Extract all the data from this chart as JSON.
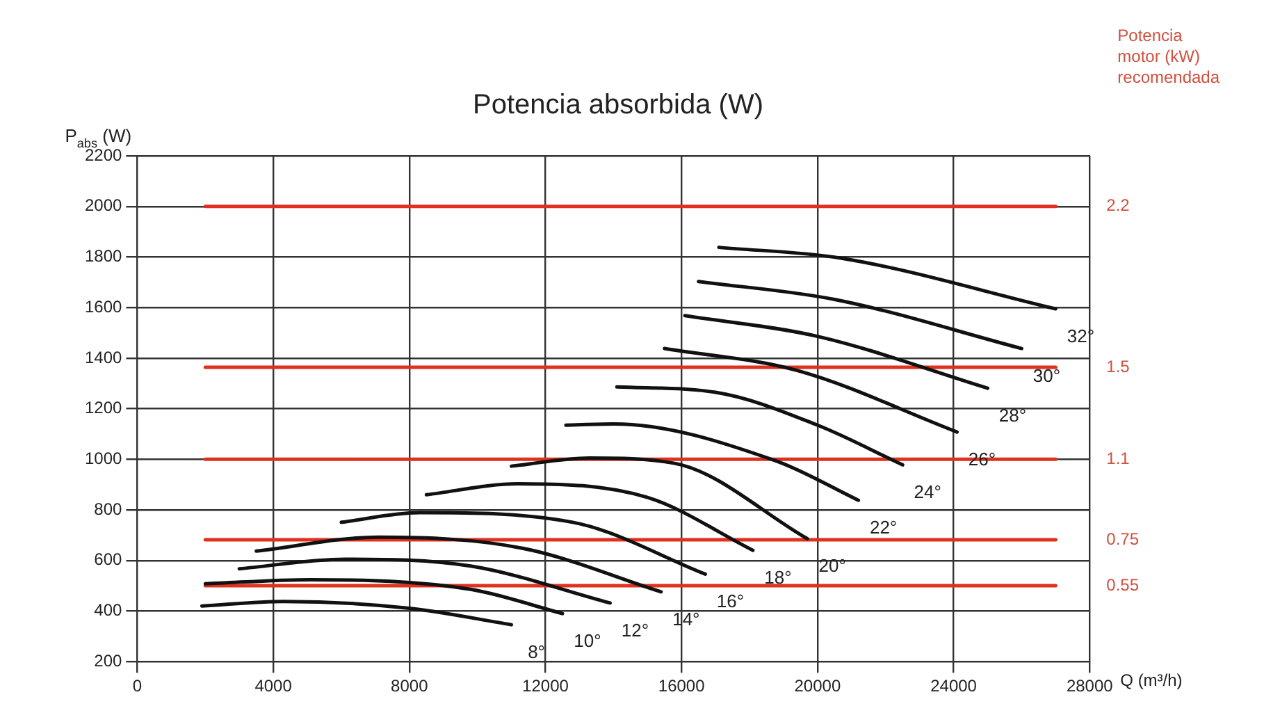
{
  "chart_data": {
    "type": "line",
    "title": "Potencia absorbida (W)",
    "xlabel": "Q (m³/h)",
    "ylabel": "P$_{abs}$ (W)",
    "y2label": "Potencia motor (kW) recomendada",
    "xlim": [
      0,
      28000
    ],
    "xticks": [
      0,
      4000,
      8000,
      12000,
      16000,
      20000,
      24000,
      28000
    ],
    "ylim": [
      200,
      2200
    ],
    "yticks": [
      200,
      400,
      600,
      800,
      1000,
      1200,
      1400,
      1600,
      1800,
      2000,
      2200
    ],
    "y2lim": [
      0.22,
      2.42
    ],
    "y2ticks": [
      0.55,
      0.75,
      1.1,
      1.5,
      2.2
    ],
    "grid": true,
    "legend": false,
    "marker": "none",
    "line_style": "solid",
    "series": [
      {
        "name": "8°",
        "color": "#111111",
        "x": [
          1900,
          4300,
          8000,
          11000
        ],
        "values": [
          420,
          438,
          411,
          346
        ]
      },
      {
        "name": "10°",
        "color": "#111111",
        "x": [
          2000,
          5100,
          9800,
          12500
        ],
        "values": [
          508,
          524,
          486,
          390
        ]
      },
      {
        "name": "12°",
        "color": "#111111",
        "x": [
          3000,
          6100,
          9800,
          13900
        ],
        "values": [
          567,
          605,
          578,
          432
        ]
      },
      {
        "name": "14°",
        "color": "#111111",
        "x": [
          3500,
          7100,
          11300,
          15400
        ],
        "values": [
          637,
          692,
          649,
          476
        ]
      },
      {
        "name": "16°",
        "color": "#111111",
        "x": [
          6000,
          8300,
          12800,
          16700
        ],
        "values": [
          751,
          789,
          751,
          546
        ]
      },
      {
        "name": "18°",
        "color": "#111111",
        "x": [
          8500,
          11200,
          15000,
          18100
        ],
        "values": [
          860,
          903,
          849,
          640
        ]
      },
      {
        "name": "20°",
        "color": "#111111",
        "x": [
          11000,
          13300,
          15800,
          19700
        ],
        "values": [
          973,
          1005,
          984,
          686
        ]
      },
      {
        "name": "22°",
        "color": "#111111",
        "x": [
          12600,
          14000,
          18750,
          21200
        ],
        "values": [
          1135,
          1140,
          995,
          838
        ]
      },
      {
        "name": "24°",
        "color": "#111111",
        "x": [
          14100,
          17000,
          20000,
          22500
        ],
        "values": [
          1286,
          1265,
          1135,
          978
        ]
      },
      {
        "name": "26°",
        "color": "#111111",
        "x": [
          15500,
          19400,
          24100
        ],
        "values": [
          1438,
          1351,
          1108
        ]
      },
      {
        "name": "28°",
        "color": "#111111",
        "x": [
          16100,
          20000,
          25000
        ],
        "values": [
          1568,
          1486,
          1281
        ]
      },
      {
        "name": "30°",
        "color": "#111111",
        "x": [
          16500,
          20500,
          26000
        ],
        "values": [
          1703,
          1632,
          1438
        ]
      },
      {
        "name": "32°",
        "color": "#111111",
        "x": [
          17100,
          20700,
          27000
        ],
        "values": [
          1838,
          1795,
          1595
        ]
      },
      {
        "color": "#e0301e",
        "axis": "y2",
        "x": [
          2000,
          27000
        ],
        "values": [
          2.2,
          2.2
        ]
      },
      {
        "color": "#e0301e",
        "axis": "y2",
        "x": [
          2000,
          27000
        ],
        "values": [
          1.5,
          1.5
        ]
      },
      {
        "color": "#e0301e",
        "axis": "y2",
        "x": [
          2000,
          27000
        ],
        "values": [
          1.1,
          1.1
        ]
      },
      {
        "color": "#e0301e",
        "axis": "y2",
        "x": [
          2000,
          27000
        ],
        "values": [
          0.75,
          0.75
        ]
      },
      {
        "color": "#e0301e",
        "axis": "y2",
        "x": [
          2000,
          27000
        ],
        "values": [
          0.55,
          0.55
        ]
      }
    ]
  }
}
